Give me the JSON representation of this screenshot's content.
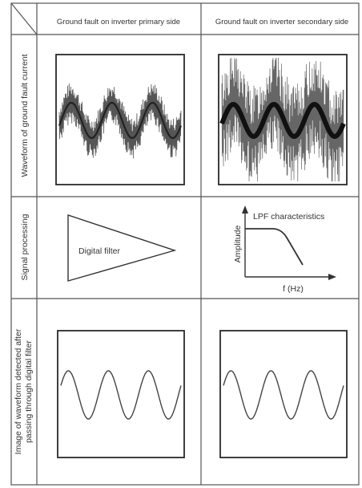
{
  "table": {
    "columns": [
      "Ground fault on inverter primary side",
      "Ground fault on inverter secondary side"
    ],
    "rows": [
      "Waveform of ground fault current",
      "Signal processing",
      "Image of waveform detected after passing through digital filter"
    ],
    "row3_lines": [
      "Image of waveform detected after",
      "passing through digital filter"
    ]
  },
  "signal_processing": {
    "filter_label": "Digital filter",
    "lpf_title": "LPF characteristics",
    "y_axis": "Amplitude",
    "x_axis": "f (Hz)"
  }
}
